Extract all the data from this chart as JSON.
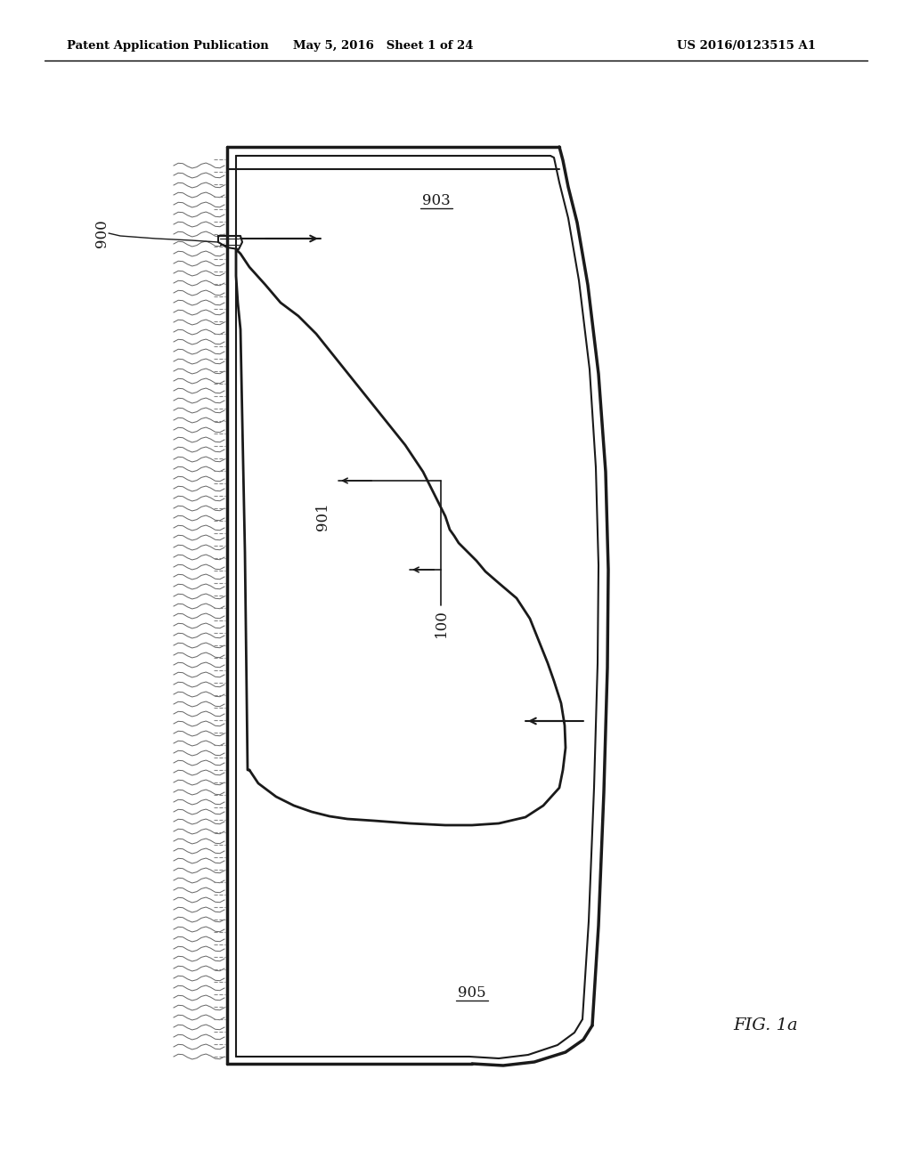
{
  "bg_color": "#ffffff",
  "header_left": "Patent Application Publication",
  "header_mid": "May 5, 2016   Sheet 1 of 24",
  "header_right": "US 2016/0123515 A1",
  "fig_label": "FIG. 1a"
}
